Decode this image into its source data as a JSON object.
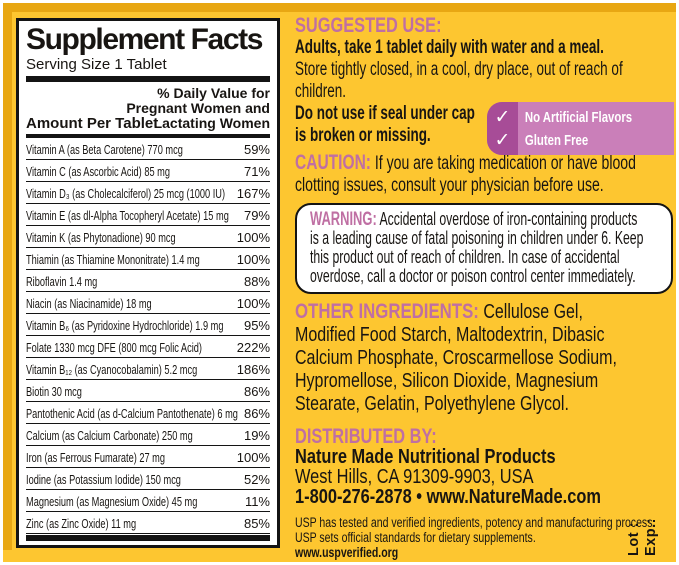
{
  "colors": {
    "background": "#FDC630",
    "gold_border": "#E8A713",
    "heading_pink": "#BF6FA3",
    "badge_dark": "#A74C97",
    "badge_light": "#CA7FB9",
    "panel": "#FFFFFF",
    "text": "#181512"
  },
  "facts": {
    "title": "Supplement Facts",
    "serving_size": "Serving Size 1 Tablet",
    "amount_header": "Amount Per Tablet",
    "dv_header_lines": [
      "% Daily Value for",
      "Pregnant Women and",
      "Lactating Women"
    ],
    "rows": [
      {
        "name": "Vitamin A (as Beta Carotene)  770 mcg",
        "value": "59%"
      },
      {
        "name": "Vitamin C (as Ascorbic Acid)  85 mg",
        "value": "71%"
      },
      {
        "name": "Vitamin D₃ (as Cholecalciferol)  25 mcg (1000 IU)",
        "value": "167%"
      },
      {
        "name": "Vitamin E (as dl-Alpha Tocopheryl Acetate)  15 mg",
        "value": "79%"
      },
      {
        "name": "Vitamin K (as Phytonadione)  90 mcg",
        "value": "100%"
      },
      {
        "name": "Thiamin (as Thiamine Mononitrate)  1.4 mg",
        "value": "100%"
      },
      {
        "name": "Riboflavin  1.4 mg",
        "value": "88%"
      },
      {
        "name": "Niacin (as Niacinamide)  18 mg",
        "value": "100%"
      },
      {
        "name": "Vitamin B₆ (as Pyridoxine Hydrochloride)  1.9 mg",
        "value": "95%"
      },
      {
        "name": "Folate  1330 mcg DFE (800 mcg Folic Acid)",
        "value": "222%"
      },
      {
        "name": "Vitamin B₁₂ (as Cyanocobalamin)  5.2 mcg",
        "value": "186%"
      },
      {
        "name": "Biotin  30 mcg",
        "value": "86%"
      },
      {
        "name": "Pantothenic Acid (as d-Calcium Pantothenate)  6 mg",
        "value": "86%"
      },
      {
        "name": "Calcium (as Calcium Carbonate)  250 mg",
        "value": "19%"
      },
      {
        "name": "Iron (as Ferrous Fumarate)  27 mg",
        "value": "100%"
      },
      {
        "name": "Iodine (as Potassium Iodide)  150 mcg",
        "value": "52%"
      },
      {
        "name": "Magnesium (as Magnesium Oxide)  45 mg",
        "value": "11%"
      },
      {
        "name": "Zinc (as Zinc Oxide)  11 mg",
        "value": "85%"
      }
    ]
  },
  "suggested_use": {
    "heading": "SUGGESTED USE:",
    "lines": [
      {
        "text": "Adults, take 1 tablet daily with water and a meal.",
        "class": "bold"
      },
      {
        "text": "Store tightly closed, in a cool, dry place, out of reach of"
      },
      {
        "text": "children."
      },
      {
        "text": "Do not use if seal under cap",
        "class": "bold"
      },
      {
        "text": "is broken or missing.",
        "class": "bold"
      }
    ]
  },
  "badge": {
    "items": [
      {
        "check": "✓",
        "label": "No Artificial Flavors"
      },
      {
        "check": "✓",
        "label": "Gluten Free"
      }
    ]
  },
  "caution": {
    "heading": "CAUTION:",
    "line1": "If you are taking medication or have blood",
    "line2": "clotting issues, consult your physician before use."
  },
  "warning": {
    "heading": "WARNING:",
    "line1": "Accidental overdose of iron-containing products",
    "lines": [
      "is a leading cause of fatal poisoning in children under 6. Keep",
      "this product out of reach of children. In case of accidental",
      "overdose, call a doctor or poison control center immediately."
    ]
  },
  "other_ingredients": {
    "heading": "OTHER INGREDIENTS:",
    "line1": "Cellulose Gel,",
    "lines": [
      "Modified Food Starch, Maltodextrin, Dibasic",
      "Calcium Phosphate, Croscarmellose Sodium,",
      "Hypromellose, Silicon Dioxide, Magnesium",
      "Stearate, Gelatin, Polyethylene Glycol."
    ]
  },
  "distributed_by": {
    "heading": "DISTRIBUTED BY:",
    "lines": [
      {
        "text": "Nature Made Nutritional Products",
        "class": "bold"
      },
      {
        "text": "West Hills, CA 91309-9903, USA"
      },
      {
        "text": "1-800-276-2878 • www.NatureMade.com",
        "class": "bold"
      }
    ]
  },
  "usp": {
    "lines": [
      {
        "text": "USP has tested and verified ingredients, potency and manufacturing process."
      },
      {
        "text": "USP sets official standards for dietary supplements."
      },
      {
        "text": "www.uspverified.org",
        "class": "bold"
      }
    ]
  },
  "lot_exp": {
    "lot": "Lot :",
    "exp": "Exp.:"
  }
}
